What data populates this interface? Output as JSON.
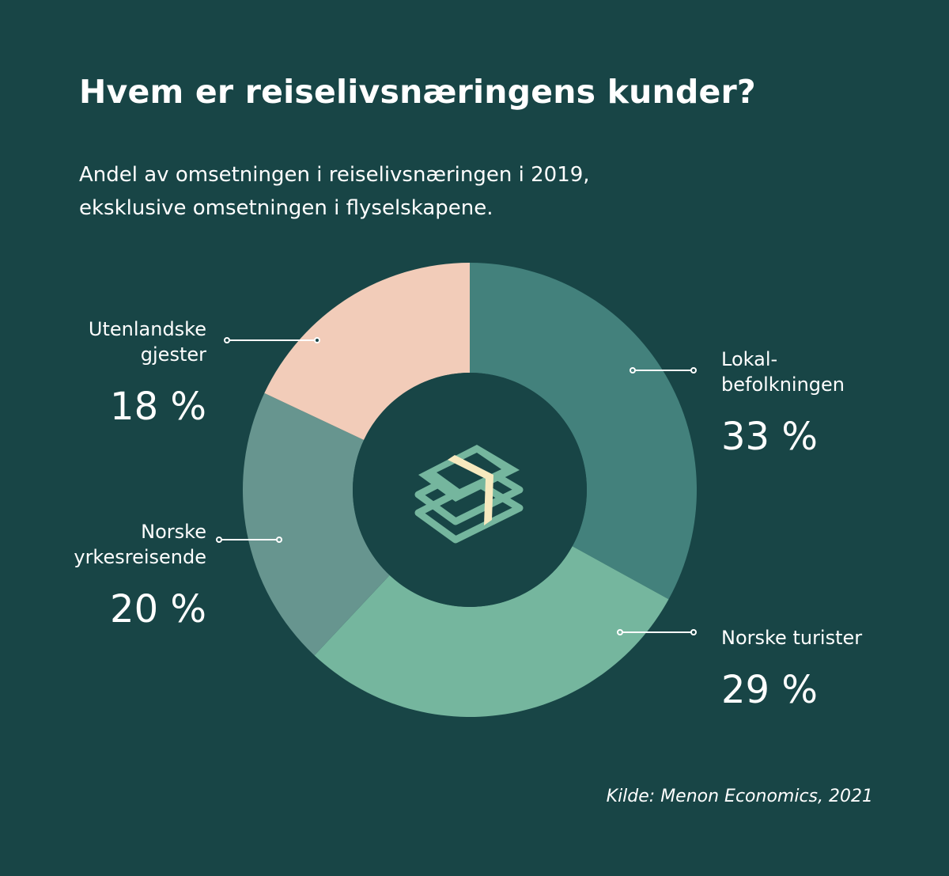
{
  "title": "Hvem er reiselivsnæringens kunder?",
  "subtitle_lines": [
    "Andel av omsetningen i reiselivsnæringen i 2019,",
    "eksklusive omsetningen i flyselskapene."
  ],
  "source": "Kilde: Menon Economics, 2021",
  "colors": {
    "background": "#184546",
    "lokalbefolkningen": "#43817c",
    "norske_turister": "#75b69e",
    "norske_yrkesreisende": "#67958f",
    "utenlandske_gjester": "#f2ccb9",
    "icon_notes": "#75b69e",
    "icon_band": "#f7e9bf"
  },
  "center_icon": "money-stack-icon",
  "chart_data": {
    "type": "pie",
    "style": "donut",
    "unit": "%",
    "slices": [
      {
        "label_lines": [
          "Lokal-",
          "befolkningen"
        ],
        "value": 33,
        "value_label": "33 %",
        "color": "#43817c"
      },
      {
        "label_lines": [
          "Norske turister"
        ],
        "value": 29,
        "value_label": "29 %",
        "color": "#75b69e"
      },
      {
        "label_lines": [
          "Norske",
          "yrkesreisende"
        ],
        "value": 20,
        "value_label": "20 %",
        "color": "#67958f"
      },
      {
        "label_lines": [
          "Utenlandske",
          "gjester"
        ],
        "value": 18,
        "value_label": "18 %",
        "color": "#f2ccb9"
      }
    ]
  }
}
